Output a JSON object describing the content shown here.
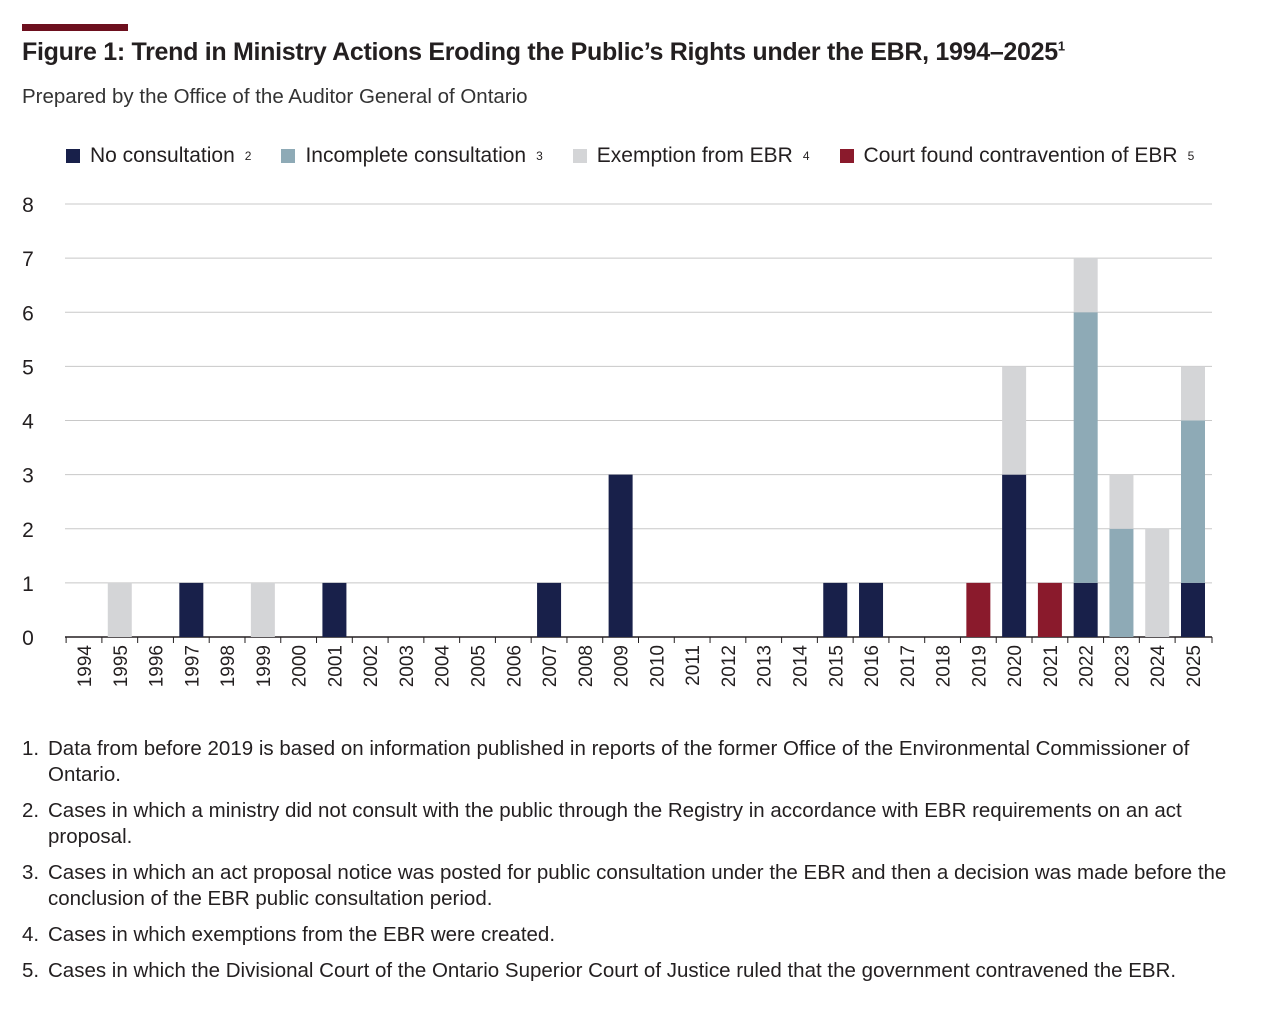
{
  "title": "Figure 1: Trend in Ministry Actions Eroding the Public’s Rights under the EBR, 1994–2025",
  "title_sup": "1",
  "subtitle": "Prepared by the Office of the Auditor General of Ontario",
  "chart_data": {
    "type": "bar",
    "stacked": true,
    "title": "Trend in Ministry Actions Eroding the Public’s Rights under the EBR, 1994–2025",
    "xlabel": "",
    "ylabel": "",
    "ylim": [
      0,
      8
    ],
    "yticks": [
      0,
      1,
      2,
      3,
      4,
      5,
      6,
      7,
      8
    ],
    "grid": true,
    "legend_position": "top",
    "categories": [
      "1994",
      "1995",
      "1996",
      "1997",
      "1998",
      "1999",
      "2000",
      "2001",
      "2002",
      "2003",
      "2004",
      "2005",
      "2006",
      "2007",
      "2008",
      "2009",
      "2010",
      "2011",
      "2012",
      "2013",
      "2014",
      "2015",
      "2016",
      "2017",
      "2018",
      "2019",
      "2020",
      "2021",
      "2022",
      "2023",
      "2024",
      "2025"
    ],
    "series": [
      {
        "name": "No consultation",
        "sup": "2",
        "color": "#18204a",
        "values": [
          0,
          0,
          0,
          1,
          0,
          0,
          0,
          1,
          0,
          0,
          0,
          0,
          0,
          1,
          0,
          3,
          0,
          0,
          0,
          0,
          0,
          1,
          1,
          0,
          0,
          0,
          3,
          0,
          1,
          0,
          0,
          1
        ]
      },
      {
        "name": "Incomplete consultation",
        "sup": "3",
        "color": "#8eaab6",
        "values": [
          0,
          0,
          0,
          0,
          0,
          0,
          0,
          0,
          0,
          0,
          0,
          0,
          0,
          0,
          0,
          0,
          0,
          0,
          0,
          0,
          0,
          0,
          0,
          0,
          0,
          0,
          0,
          0,
          5,
          2,
          0,
          3
        ]
      },
      {
        "name": "Exemption from EBR",
        "sup": "4",
        "color": "#d4d5d7",
        "values": [
          0,
          1,
          0,
          0,
          0,
          1,
          0,
          0,
          0,
          0,
          0,
          0,
          0,
          0,
          0,
          0,
          0,
          0,
          0,
          0,
          0,
          0,
          0,
          0,
          0,
          0,
          2,
          0,
          1,
          1,
          2,
          1
        ]
      },
      {
        "name": "Court found contravention of EBR",
        "sup": "5",
        "color": "#8a1a2c",
        "values": [
          0,
          0,
          0,
          0,
          0,
          0,
          0,
          0,
          0,
          0,
          0,
          0,
          0,
          0,
          0,
          0,
          0,
          0,
          0,
          0,
          0,
          0,
          0,
          0,
          0,
          1,
          0,
          1,
          0,
          0,
          0,
          0
        ]
      }
    ]
  },
  "notes": [
    {
      "n": "1.",
      "text": "Data from before 2019 is based on information published in reports of the former Office of the Environmental Commissioner of Ontario."
    },
    {
      "n": "2.",
      "text": "Cases in which a ministry did not consult with the public through the Registry in accordance with EBR requirements on an act proposal."
    },
    {
      "n": "3.",
      "text": "Cases in which an act proposal notice was posted for public consultation under the EBR and then a decision was made before the conclusion of the EBR public consultation period."
    },
    {
      "n": "4.",
      "text": "Cases in which exemptions from the EBR were created."
    },
    {
      "n": "5.",
      "text": "Cases in which the Divisional Court of the Ontario Superior Court of Justice ruled that the government contravened the EBR."
    }
  ]
}
